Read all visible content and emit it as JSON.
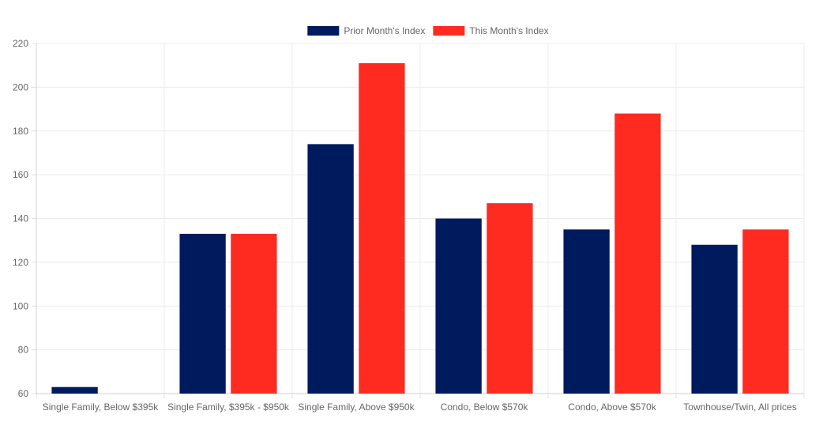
{
  "chart_data": {
    "type": "bar",
    "categories": [
      "Single Family, Below $395k",
      "Single Family, $395k - $950k",
      "Single Family, Above $950k",
      "Condo, Below $570k",
      "Condo, Above $570k",
      "Townhouse/Twin, All prices"
    ],
    "series": [
      {
        "name": "Prior Month's Index",
        "color": "#001a5e",
        "values": [
          63,
          133,
          174,
          140,
          135,
          128
        ]
      },
      {
        "name": "This Month's Index",
        "color": "#ff2a20",
        "values": [
          null,
          133,
          211,
          147,
          188,
          135
        ]
      }
    ],
    "ylim": [
      60,
      220
    ],
    "yticks": [
      60,
      80,
      100,
      120,
      140,
      160,
      180,
      200,
      220
    ],
    "grid": true,
    "legend": "top-center"
  }
}
